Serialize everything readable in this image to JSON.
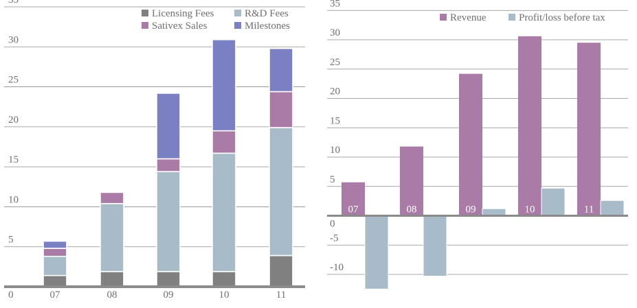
{
  "chart_data": [
    {
      "type": "bar",
      "stacked": true,
      "title": "",
      "xlabel": "",
      "ylabel": "",
      "ylim": [
        0,
        35
      ],
      "yticks": [
        0,
        5,
        10,
        15,
        20,
        25,
        30,
        35
      ],
      "grid": true,
      "legend_position": "top-right",
      "categories": [
        "07",
        "08",
        "09",
        "10",
        "11"
      ],
      "series": [
        {
          "name": "Licensing Fees",
          "color": "#808080",
          "values": [
            1.4,
            1.9,
            1.9,
            1.9,
            3.9
          ]
        },
        {
          "name": "R&D Fees",
          "color": "#a7bbc9",
          "values": [
            2.4,
            8.5,
            12.5,
            14.8,
            16.0
          ]
        },
        {
          "name": "Sativex Sales",
          "color": "#a97ba6",
          "values": [
            1.0,
            1.4,
            1.6,
            2.8,
            4.5
          ]
        },
        {
          "name": "Milestones",
          "color": "#7b7fc3",
          "values": [
            0.9,
            0,
            8.2,
            11.4,
            5.4
          ]
        }
      ]
    },
    {
      "type": "bar",
      "stacked": false,
      "title": "",
      "xlabel": "",
      "ylabel": "",
      "ylim": [
        -12.5,
        35
      ],
      "yticks": [
        35,
        30,
        25,
        20,
        15,
        10,
        5,
        0,
        -5,
        -10
      ],
      "grid": true,
      "legend_position": "top-right",
      "categories": [
        "07",
        "08",
        "09",
        "10",
        "11"
      ],
      "series": [
        {
          "name": "Revenue",
          "color": "#a97ba6",
          "values": [
            5.7,
            11.8,
            24.2,
            30.6,
            29.5
          ]
        },
        {
          "name": "Profit/loss before tax",
          "color": "#a7bbc9",
          "values": [
            -12.5,
            -10.3,
            1.2,
            4.7,
            2.6
          ]
        }
      ]
    }
  ]
}
